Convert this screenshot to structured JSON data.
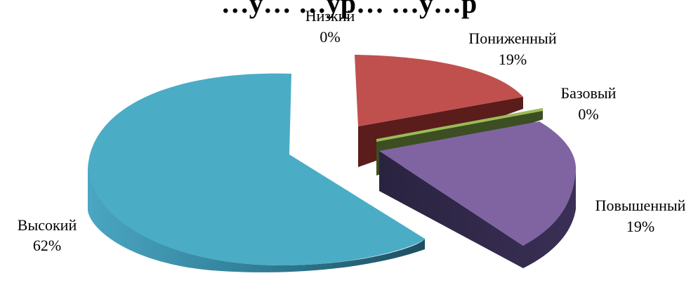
{
  "chart_data": {
    "type": "pie",
    "title": "…у… …ур…  …у…р",
    "three_d": true,
    "exploded": true,
    "categories": [
      "Низкий",
      "Пониженный",
      "Базовый",
      "Повышенный",
      "Высокий"
    ],
    "values": [
      0,
      19,
      0,
      19,
      62
    ],
    "value_labels": [
      "0%",
      "19%",
      "0%",
      "19%",
      "62%"
    ],
    "colors": [
      "#4f81bd",
      "#c0504d",
      "#9bbb59",
      "#8064a2",
      "#4bacc6"
    ],
    "legend": "none"
  }
}
